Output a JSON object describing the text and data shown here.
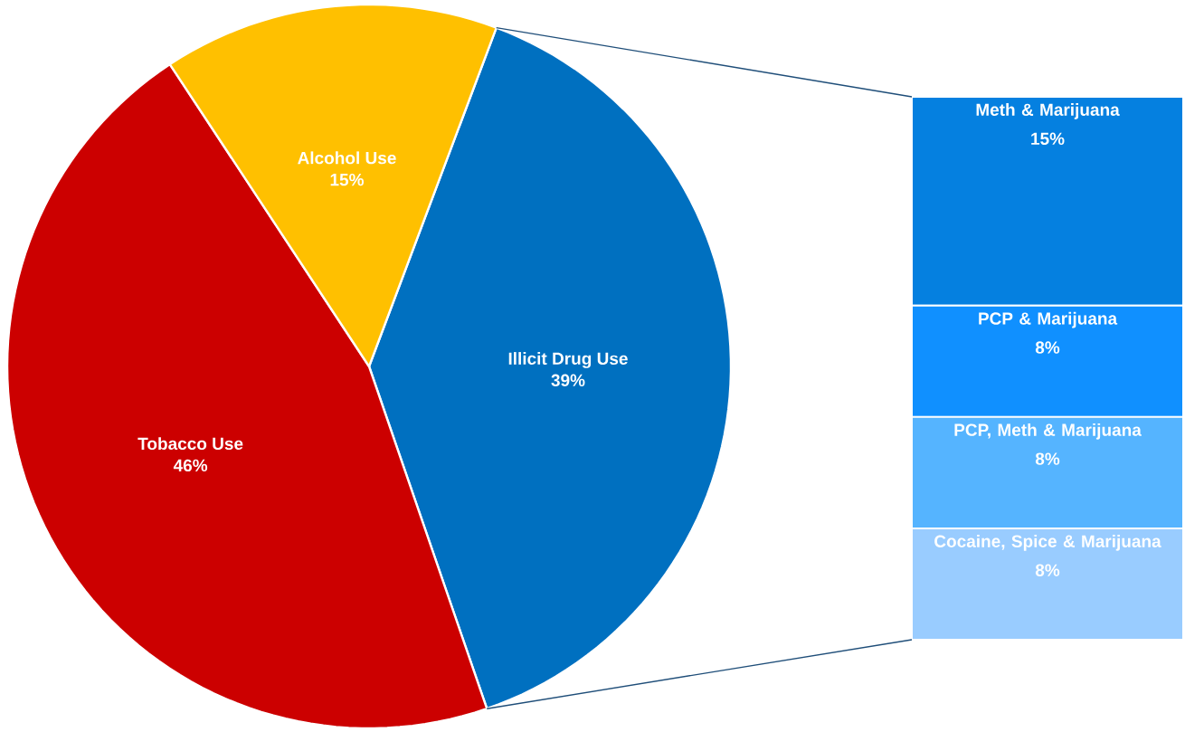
{
  "chart_data": [
    {
      "type": "pie",
      "categories": [
        "Illicit Drug Use",
        "Tobacco Use",
        "Alcohol Use"
      ],
      "values": [
        39,
        46,
        15
      ],
      "colors": [
        "#0070c0",
        "#cc0000",
        "#ffc000"
      ],
      "value_labels": [
        "39%",
        "46%",
        "15%"
      ]
    },
    {
      "type": "bar",
      "stacked": true,
      "categories": [
        null
      ],
      "series": [
        {
          "name": "Cocaine, Spice & Marijuana",
          "color": "#99ccff",
          "values": [
            8
          ],
          "value_labels": [
            "8%"
          ]
        },
        {
          "name": "PCP, Meth & Marijuana",
          "color": "#55b4ff",
          "values": [
            8
          ],
          "value_labels": [
            "8%"
          ]
        },
        {
          "name": "PCP & Marijuana",
          "color": "#1090ff",
          "values": [
            8
          ],
          "value_labels": [
            "8%"
          ]
        },
        {
          "name": "Meth & Marijuana",
          "color": "#0580e0",
          "values": [
            15
          ],
          "value_labels": [
            "15%"
          ]
        }
      ]
    }
  ]
}
